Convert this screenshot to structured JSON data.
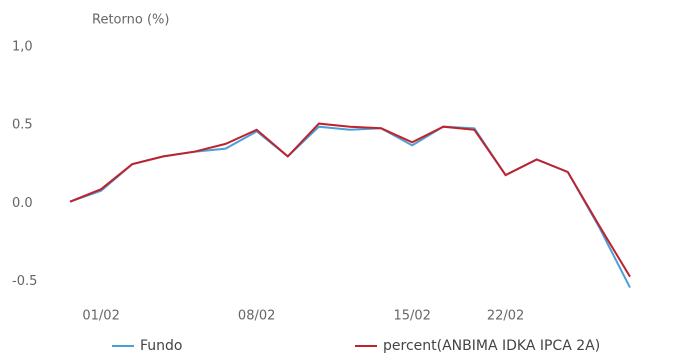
{
  "chart_data": {
    "type": "line",
    "y_label": "Retorno (%)",
    "categories": [
      null,
      "01/02",
      null,
      null,
      null,
      null,
      "08/02",
      null,
      null,
      null,
      null,
      "15/02",
      null,
      null,
      "22/02",
      null,
      null,
      null,
      null
    ],
    "series": [
      {
        "name": "Fundo",
        "color": "#4a9fd8",
        "values": [
          0.01,
          0.08,
          0.25,
          0.3,
          0.33,
          0.35,
          0.46,
          0.3,
          0.49,
          0.47,
          0.48,
          0.37,
          0.49,
          0.48,
          0.18,
          0.28,
          0.2,
          -0.15,
          -0.54
        ]
      },
      {
        "name": "percent(ANBIMA IDKA IPCA 2A)",
        "color": "#c0222c",
        "values": [
          0.01,
          0.09,
          0.25,
          0.3,
          0.33,
          0.38,
          0.47,
          0.3,
          0.51,
          0.49,
          0.48,
          0.39,
          0.49,
          0.47,
          0.18,
          0.28,
          0.2,
          -0.14,
          -0.47
        ]
      }
    ],
    "ylim": [
      -0.6,
      1.0
    ],
    "yticks": [
      -0.5,
      {
        "value": 0,
        "label": "0.0"
      },
      0.5,
      {
        "value": 1,
        "label": "1,0"
      }
    ],
    "grid": false,
    "legend": "bottom"
  }
}
